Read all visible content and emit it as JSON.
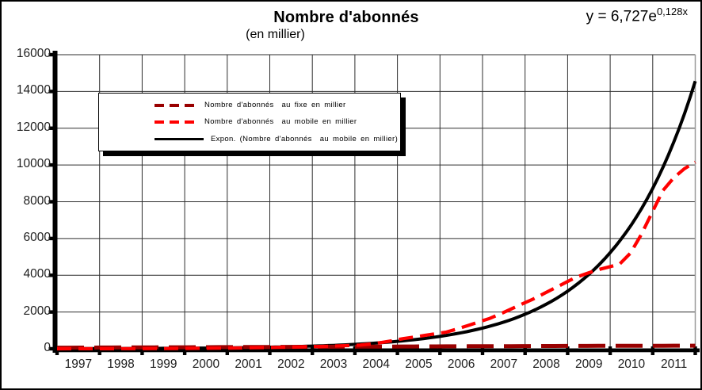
{
  "chart": {
    "title": "Nombre d'abonnés",
    "subtitle": "(en millier)",
    "equation_base": "y = 6,727e",
    "equation_exponent": "0,128x"
  },
  "legend": {
    "items": [
      {
        "label": "Nombre d'abonnés  au fixe en millier",
        "color": "#990000",
        "style": "dashed"
      },
      {
        "label": "Nombre d'abonnés  au mobile en millier",
        "color": "#ff0000",
        "style": "dashed"
      },
      {
        "label": "Expon. (Nombre d'abonnés  au mobile en millier)",
        "color": "#000000",
        "style": "solid"
      }
    ]
  },
  "chart_data": {
    "type": "line",
    "title": "Nombre d'abonnés (en millier)",
    "xlabel": "",
    "ylabel": "",
    "x_categories": [
      "1997",
      "1998",
      "1999",
      "2000",
      "2001",
      "2002",
      "2003",
      "2004",
      "2005",
      "2006",
      "2007",
      "2008",
      "2009",
      "2010",
      "2011"
    ],
    "points_per_year": 4,
    "x_note": "quarterly points 1997Q1 - 2011Q4 (60 points)",
    "ylim": [
      0,
      16000
    ],
    "y_ticks": [
      0,
      2000,
      4000,
      6000,
      8000,
      10000,
      12000,
      14000,
      16000
    ],
    "grid": true,
    "legend_position": "top-left inside plot area",
    "annotation": "y = 6,727e^(0,128x)",
    "series": [
      {
        "name": "Nombre d'abonnés au fixe en millier",
        "color": "#990000",
        "line_style": "dashed",
        "values": [
          60,
          62,
          64,
          66,
          68,
          70,
          72,
          74,
          76,
          78,
          80,
          82,
          84,
          86,
          88,
          90,
          92,
          94,
          96,
          98,
          100,
          102,
          104,
          106,
          108,
          110,
          112,
          114,
          116,
          118,
          120,
          122,
          124,
          126,
          128,
          130,
          132,
          134,
          136,
          138,
          140,
          142,
          144,
          146,
          148,
          150,
          152,
          154,
          156,
          157,
          158,
          160,
          161,
          162,
          164,
          165,
          166,
          168,
          169,
          170
        ]
      },
      {
        "name": "Nombre d'abonnés au mobile en millier",
        "color": "#ff0000",
        "line_style": "dashed",
        "values": [
          2,
          3,
          3,
          4,
          5,
          6,
          7,
          8,
          10,
          12,
          14,
          17,
          20,
          24,
          29,
          34,
          40,
          47,
          55,
          64,
          75,
          85,
          96,
          108,
          120,
          138,
          158,
          178,
          200,
          260,
          340,
          440,
          550,
          640,
          730,
          820,
          910,
          1080,
          1270,
          1460,
          1650,
          1900,
          2170,
          2440,
          2700,
          3000,
          3300,
          3600,
          3900,
          4100,
          4300,
          4450,
          4600,
          5200,
          6200,
          7400,
          8600,
          9300,
          9800,
          10150
        ]
      },
      {
        "name": "Expon. (Nombre d'abonnés au mobile en millier)",
        "color": "#000000",
        "line_style": "solid",
        "trendline": {
          "form": "exponential",
          "a": 6.727,
          "b": 0.128,
          "x": "quarter index 0-60",
          "formula": "y = 6,727e^(0,128x)",
          "end_value": 14573
        }
      }
    ]
  }
}
